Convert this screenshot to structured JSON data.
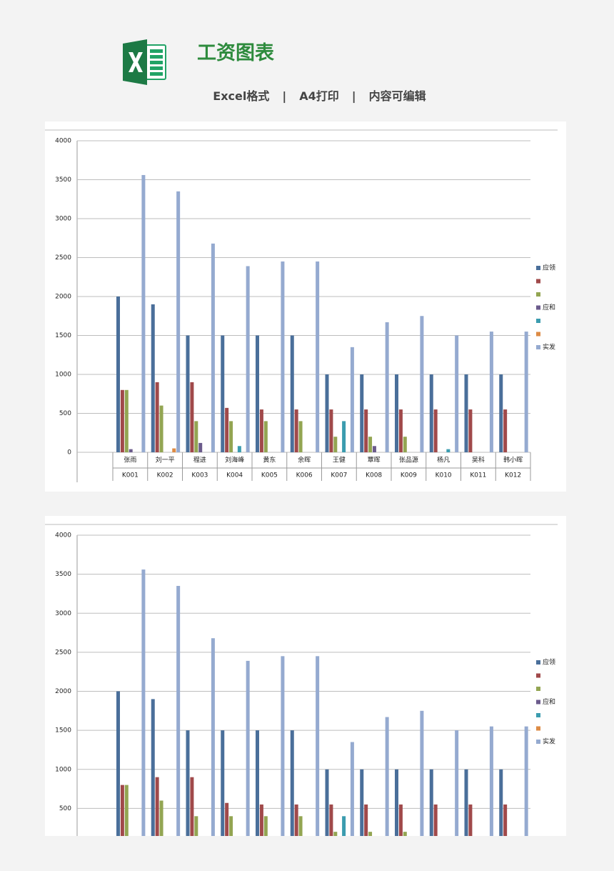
{
  "header": {
    "title": "工资图表",
    "features": [
      "Excel格式",
      "A4打印",
      "内容可编辑"
    ]
  },
  "chart_data": [
    {
      "type": "bar",
      "categories": [
        "K001",
        "K002",
        "K003",
        "K004",
        "K005",
        "K006",
        "K007",
        "K008",
        "K009",
        "K010",
        "K011",
        "K012"
      ],
      "employee_names": [
        "张雨",
        "刘一平",
        "程进",
        "刘海峰",
        "黄东",
        "余晖",
        "王健",
        "覃晖",
        "张品源",
        "杨凡",
        "吴科",
        "韩小晖"
      ],
      "ylim": [
        0,
        4000
      ],
      "yticks": [
        0,
        500,
        1000,
        1500,
        2000,
        2500,
        3000,
        3500,
        4000
      ],
      "grid": true,
      "series": [
        {
          "name": "应领",
          "color": "#4a6f9a",
          "values": [
            2000,
            1900,
            1500,
            1500,
            1500,
            1500,
            1000,
            1000,
            1000,
            1000,
            1000,
            1000
          ]
        },
        {
          "name": null,
          "color": "#a0494a",
          "values": [
            800,
            900,
            900,
            570,
            550,
            550,
            550,
            550,
            550,
            550,
            550,
            550
          ]
        },
        {
          "name": null,
          "color": "#93a552",
          "values": [
            800,
            600,
            400,
            400,
            400,
            400,
            200,
            200,
            200,
            0,
            0,
            0
          ]
        },
        {
          "name": "应和",
          "color": "#6b5b8c",
          "values": [
            40,
            0,
            120,
            0,
            0,
            0,
            0,
            80,
            0,
            0,
            0,
            0
          ]
        },
        {
          "name": null,
          "color": "#3b9caf",
          "values": [
            0,
            0,
            0,
            80,
            0,
            0,
            400,
            0,
            0,
            40,
            0,
            0
          ]
        },
        {
          "name": null,
          "color": "#dd8b45",
          "values": [
            0,
            50,
            0,
            0,
            0,
            0,
            0,
            0,
            0,
            0,
            0,
            0
          ]
        },
        {
          "name": "实发",
          "color": "#95aad0",
          "values": [
            3560,
            3350,
            2680,
            2390,
            2450,
            2450,
            1350,
            1670,
            1750,
            1500,
            1550,
            1550
          ]
        }
      ]
    },
    {
      "type": "bar",
      "ylim": [
        0,
        4000
      ],
      "yticks": [
        500,
        1000,
        1500,
        2000,
        2500,
        3000,
        3500,
        4000
      ],
      "grid": true,
      "series": [
        {
          "name": "应领",
          "color": "#4a6f9a",
          "values": [
            2000,
            1900,
            1500,
            1500,
            1500,
            1500,
            1000,
            1000,
            1000,
            1000,
            1000,
            1000
          ]
        },
        {
          "name": null,
          "color": "#a0494a",
          "values": [
            800,
            900,
            900,
            570,
            550,
            550,
            550,
            550,
            550,
            550,
            550,
            550
          ]
        },
        {
          "name": null,
          "color": "#93a552",
          "values": [
            800,
            600,
            400,
            400,
            400,
            400,
            200,
            200,
            200,
            0,
            0,
            0
          ]
        },
        {
          "name": "应和",
          "color": "#6b5b8c",
          "values": [
            40,
            0,
            120,
            0,
            0,
            0,
            0,
            80,
            0,
            0,
            0,
            0
          ]
        },
        {
          "name": null,
          "color": "#3b9caf",
          "values": [
            0,
            0,
            0,
            80,
            0,
            0,
            400,
            0,
            0,
            40,
            0,
            0
          ]
        },
        {
          "name": null,
          "color": "#dd8b45",
          "values": [
            0,
            50,
            0,
            0,
            0,
            0,
            0,
            0,
            0,
            0,
            0,
            0
          ]
        },
        {
          "name": "实发",
          "color": "#95aad0",
          "values": [
            3560,
            3350,
            2680,
            2390,
            2450,
            2450,
            1350,
            1670,
            1750,
            1500,
            1550,
            1550
          ]
        }
      ]
    }
  ]
}
